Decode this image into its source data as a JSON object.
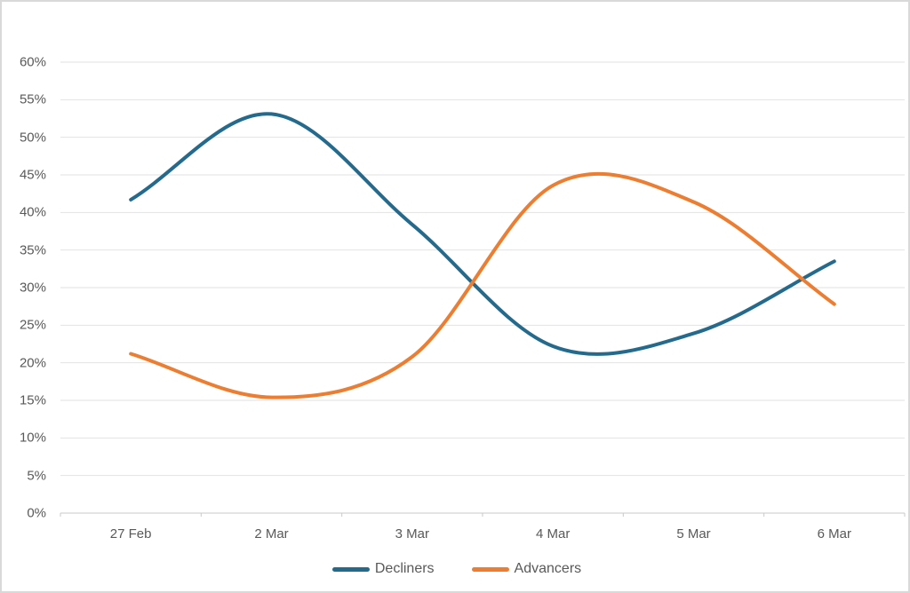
{
  "chart_data": {
    "type": "line",
    "title": "",
    "xlabel": "",
    "ylabel": "",
    "x": [
      "27 Feb",
      "2 Mar",
      "3 Mar",
      "4 Mar",
      "5 Mar",
      "6 Mar"
    ],
    "series": [
      {
        "name": "Decliners",
        "color": "#246a8d",
        "values": [
          41.7,
          53.1,
          38.4,
          22.2,
          23.9,
          33.5
        ]
      },
      {
        "name": "Advancers",
        "color": "#ed7d31",
        "values": [
          21.2,
          15.4,
          20.8,
          43.6,
          41.4,
          27.8
        ]
      }
    ],
    "ylim": [
      0,
      60
    ],
    "ytick_step": 5,
    "ytick_labels": [
      "0%",
      "5%",
      "10%",
      "15%",
      "20%",
      "25%",
      "30%",
      "35%",
      "40%",
      "45%",
      "50%",
      "55%",
      "60%"
    ],
    "yformat": "percent",
    "grid": true,
    "smooth": true,
    "legend_position": "bottom-center"
  },
  "legend": {
    "items": [
      {
        "label": "Decliners"
      },
      {
        "label": "Advancers"
      }
    ]
  },
  "styles": {
    "gridline_color": "#e2e2e2",
    "axis_color": "#c9c9c9",
    "label_color": "#595959",
    "frame_border_color": "#d9d9d9",
    "background": "#ffffff"
  }
}
